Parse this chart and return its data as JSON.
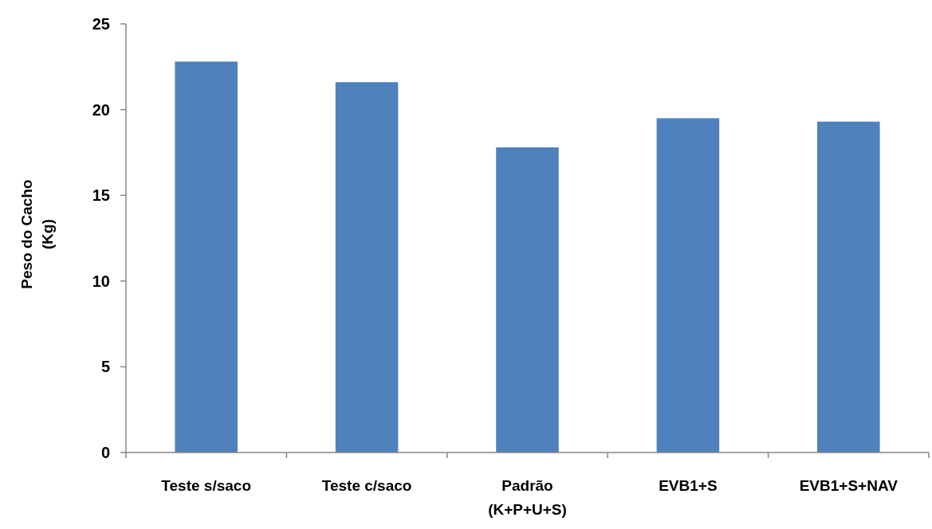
{
  "chart_data": {
    "type": "bar",
    "ylabel": "Peso do Cacho\n(Kg)",
    "categories": [
      "Teste s/saco",
      "Teste c/saco",
      "Padrão\n(K+P+U+S)",
      "EVB1+S",
      "EVB1+S+NAV"
    ],
    "values": [
      22.8,
      21.6,
      17.8,
      19.5,
      19.3
    ],
    "color": "#4f81bd",
    "ylim": [
      0,
      25
    ],
    "yticks": [
      0,
      5,
      10,
      15,
      20,
      25
    ]
  }
}
